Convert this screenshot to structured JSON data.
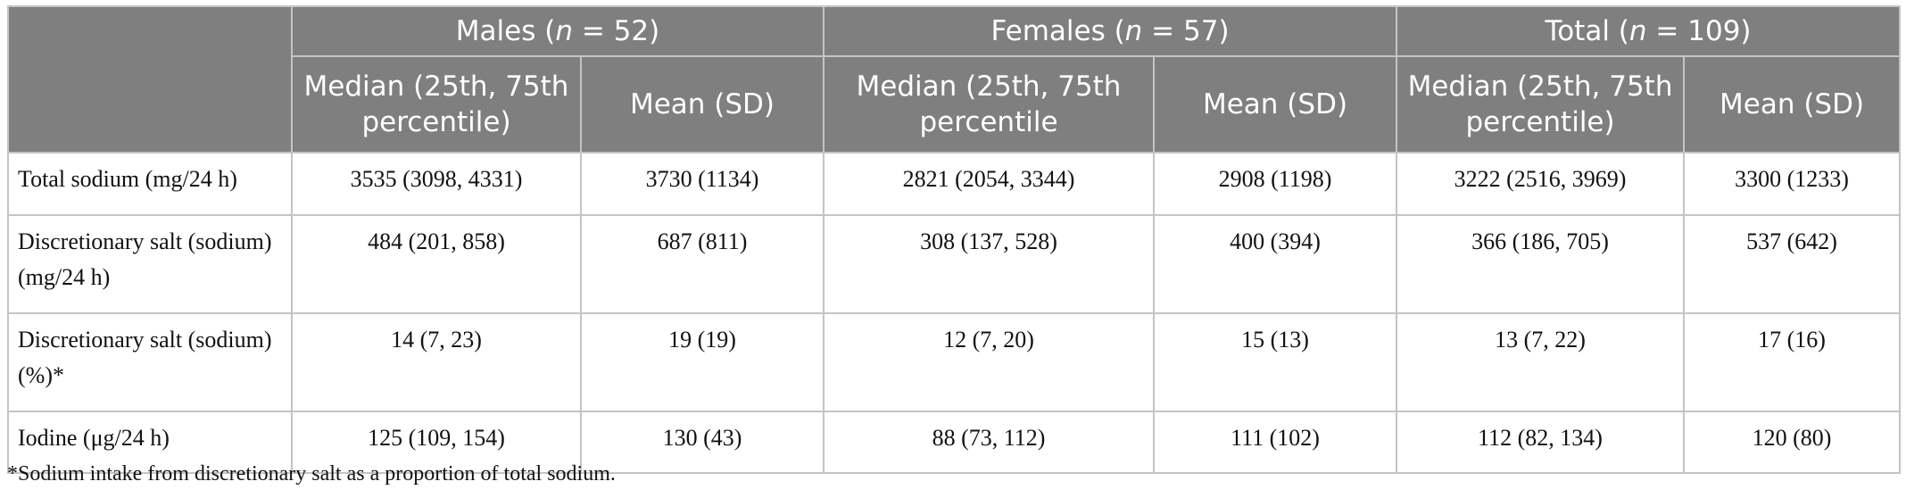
{
  "header": {
    "groups": [
      {
        "prefix": "Males (",
        "n_symbol": "n",
        "suffix": " = 52)"
      },
      {
        "prefix": "Females (",
        "n_symbol": "n",
        "suffix": " = 57)"
      },
      {
        "prefix": "Total (",
        "n_symbol": "n",
        "suffix": " = 109)"
      }
    ],
    "subheaders": [
      "Median (25th, 75th percentile)",
      "Mean (SD)",
      "Median (25th, 75th percentile",
      "Mean (SD)",
      "Median (25th, 75th percentile)",
      "Mean (SD)"
    ]
  },
  "rows": [
    {
      "label": "Total sodium (mg/24 h)",
      "values": [
        "3535 (3098, 4331)",
        "3730 (1134)",
        "2821 (2054, 3344)",
        "2908 (1198)",
        "3222 (2516, 3969)",
        "3300 (1233)"
      ]
    },
    {
      "label": "Discretionary salt (sodium) (mg/24 h)",
      "values": [
        "484 (201, 858)",
        "687 (811)",
        "308 (137, 528)",
        "400 (394)",
        "366 (186, 705)",
        "537 (642)"
      ]
    },
    {
      "label": "Discretionary salt (sodium) (%)*",
      "values": [
        "14 (7, 23)",
        "19 (19)",
        "12 (7, 20)",
        "15 (13)",
        "13 (7, 22)",
        "17 (16)"
      ]
    },
    {
      "label": "Iodine (μg/24 h)",
      "values": [
        "125 (109, 154)",
        "130 (43)",
        "88 (73, 112)",
        "111 (102)",
        "112 (82, 134)",
        "120 (80)"
      ]
    }
  ],
  "footnote": "*Sodium intake from discretionary salt as a proportion of total sodium.",
  "colors": {
    "header_bg": "#7f7f7f",
    "header_text": "#ffffff",
    "border": "#c4c4c4",
    "body_text": "#111111"
  }
}
